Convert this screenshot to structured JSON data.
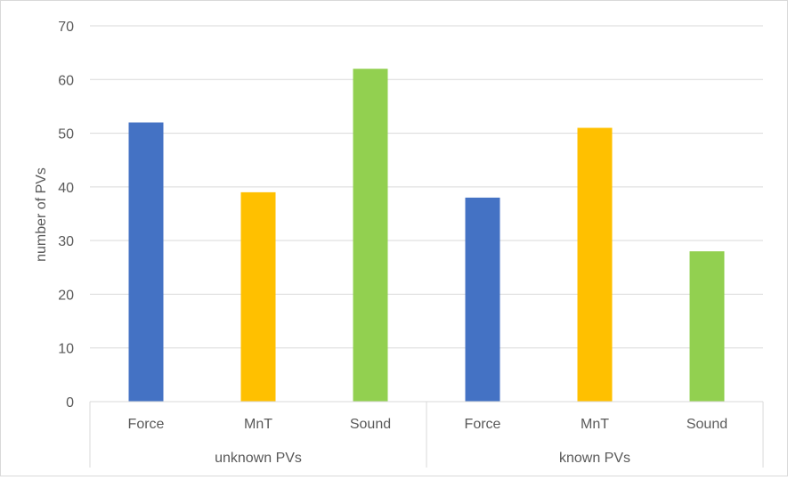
{
  "chart_data": {
    "type": "bar",
    "title": "",
    "xlabel": "",
    "ylabel": "number of PVs",
    "ylim": [
      0,
      70
    ],
    "yticks": [
      0,
      10,
      20,
      30,
      40,
      50,
      60,
      70
    ],
    "grid": true,
    "legend": "none",
    "groups": [
      {
        "label": "unknown PVs",
        "bars": [
          {
            "category": "Force",
            "value": 52,
            "color": "#4472C4"
          },
          {
            "category": "MnT",
            "value": 39,
            "color": "#FFC000"
          },
          {
            "category": "Sound",
            "value": 62,
            "color": "#92D050"
          }
        ]
      },
      {
        "label": "known PVs",
        "bars": [
          {
            "category": "Force",
            "value": 38,
            "color": "#4472C4"
          },
          {
            "category": "MnT",
            "value": 51,
            "color": "#FFC000"
          },
          {
            "category": "Sound",
            "value": 28,
            "color": "#92D050"
          }
        ]
      }
    ]
  }
}
